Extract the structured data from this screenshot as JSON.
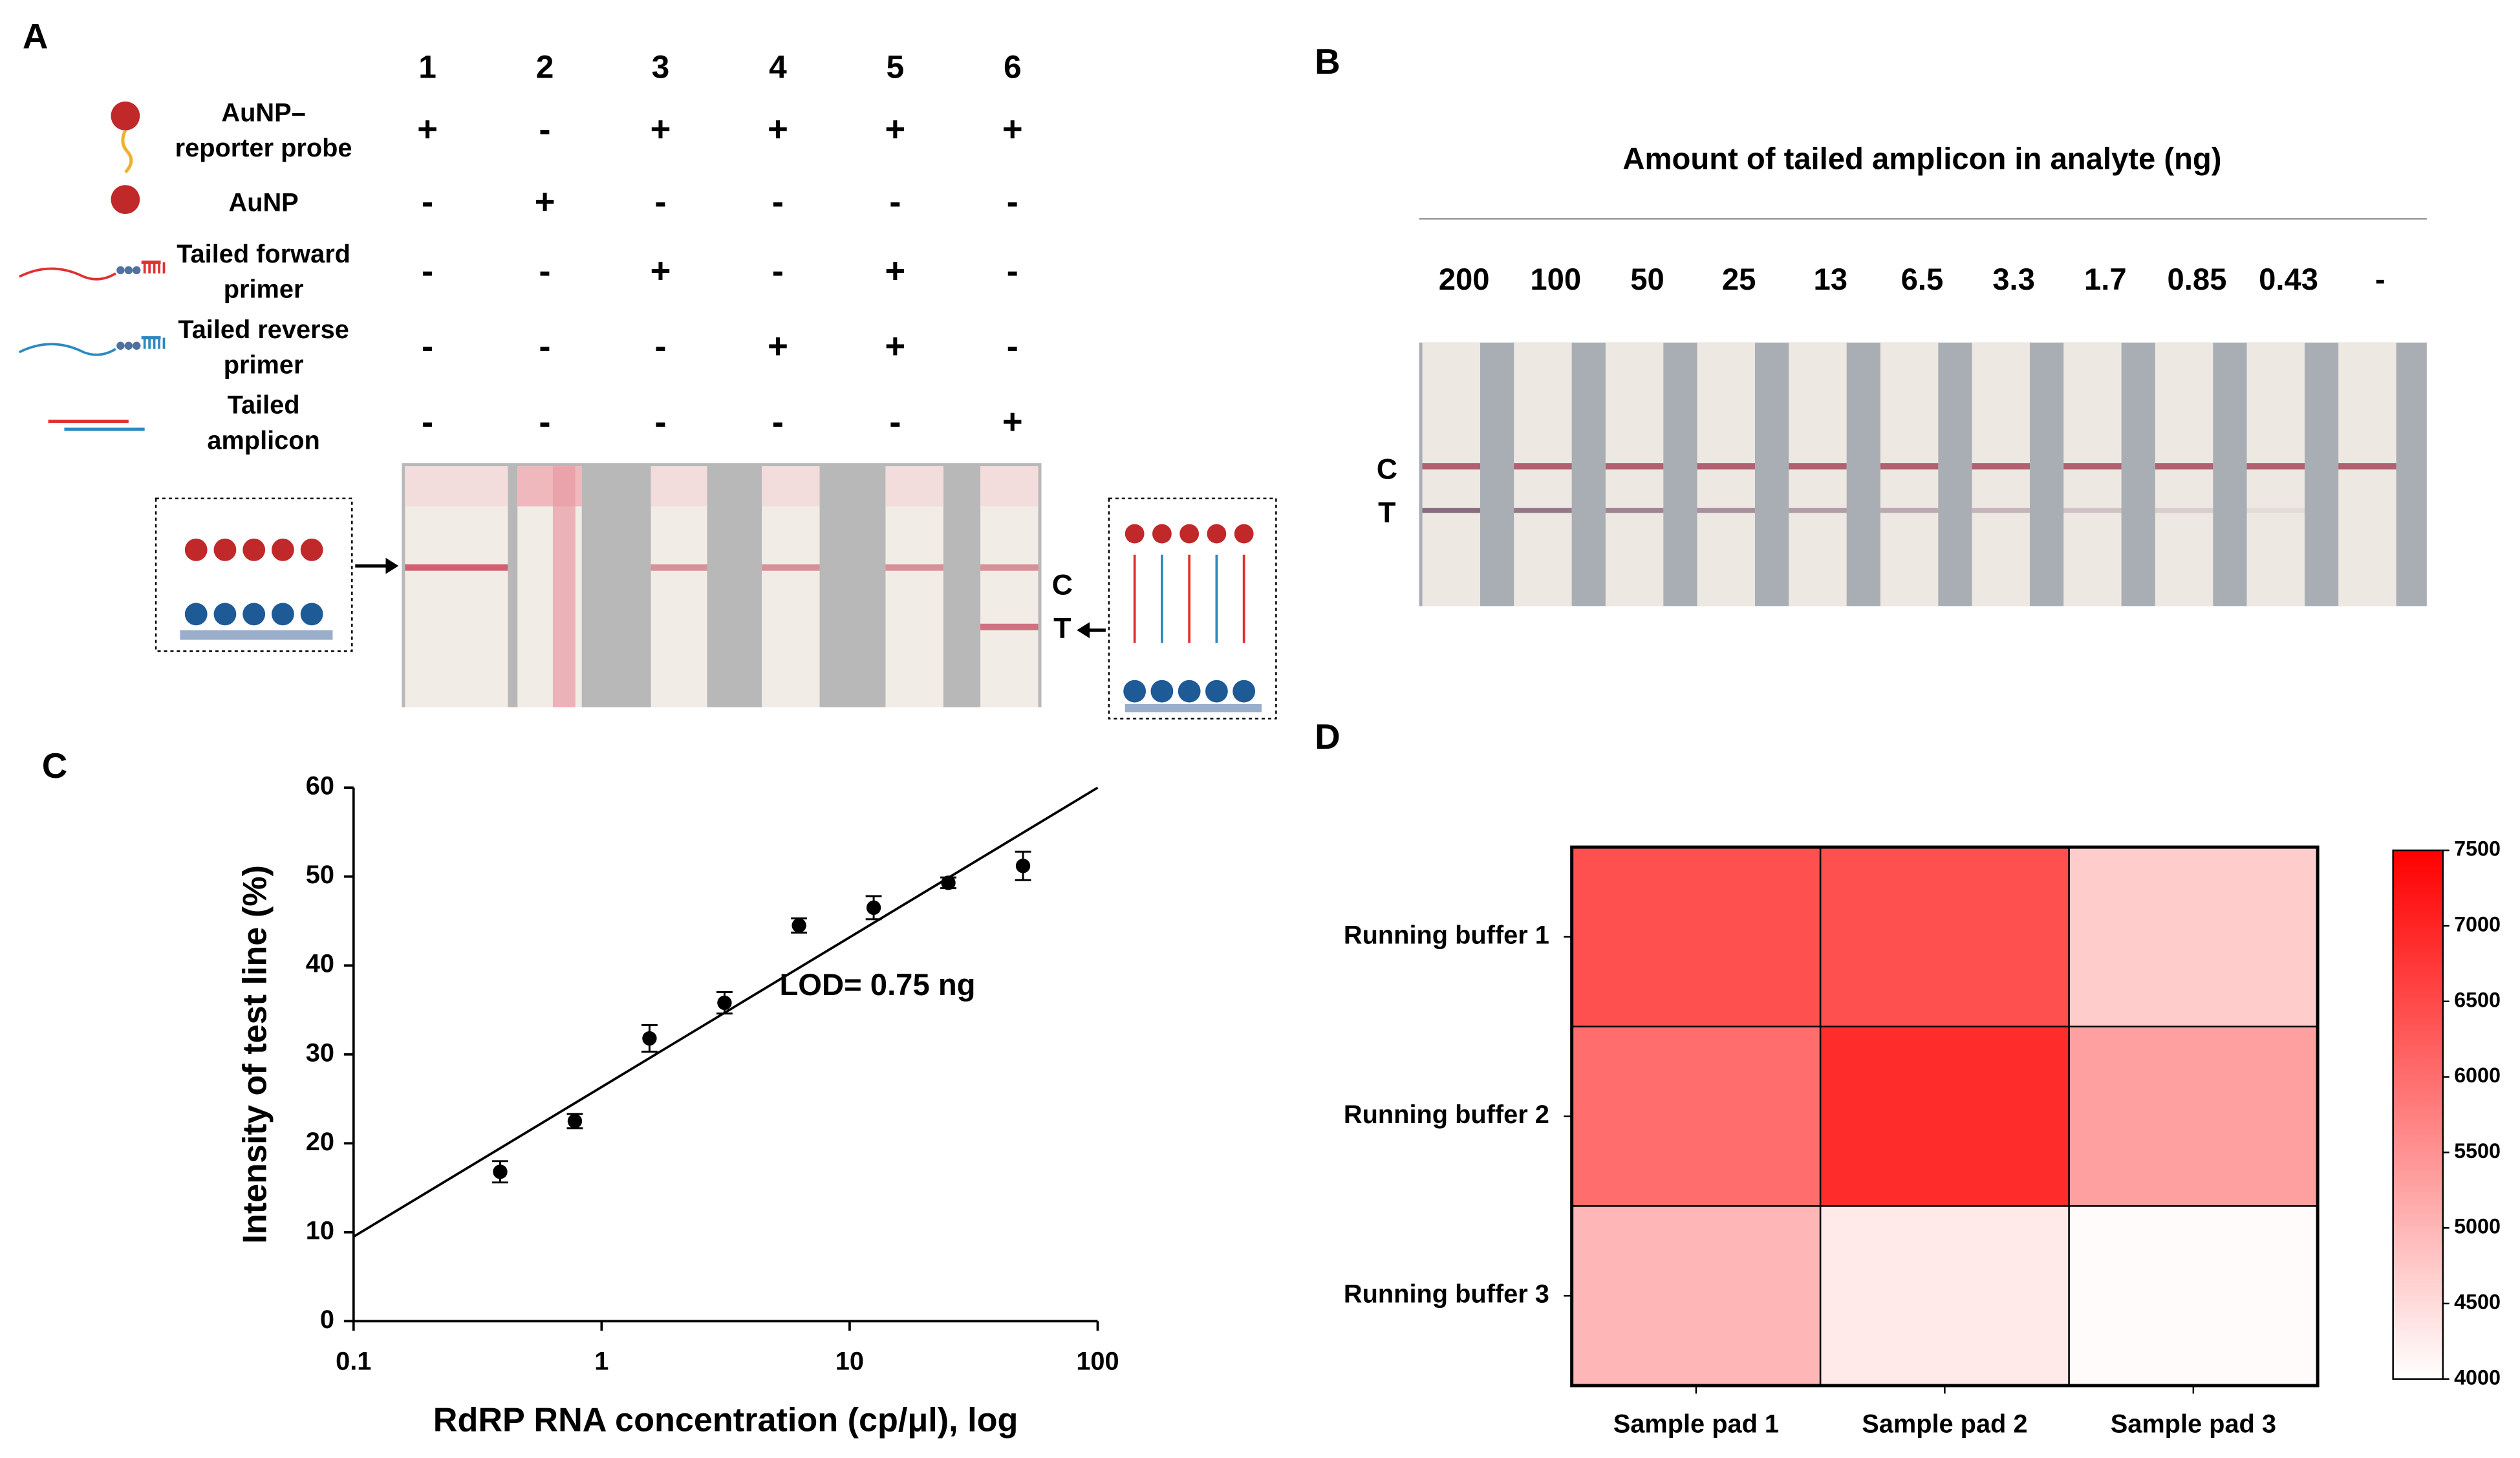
{
  "panel_a": {
    "label": "A",
    "lanes": [
      "1",
      "2",
      "3",
      "4",
      "5",
      "6"
    ],
    "rows": [
      {
        "label_lines": [
          "AuNP–",
          "reporter probe"
        ],
        "signs": [
          "+",
          "-",
          "+",
          "+",
          "+",
          "+"
        ]
      },
      {
        "label_lines": [
          "AuNP"
        ],
        "signs": [
          "-",
          "+",
          "-",
          "-",
          "-",
          "-"
        ]
      },
      {
        "label_lines": [
          "Tailed forward",
          "primer"
        ],
        "signs": [
          "-",
          "-",
          "+",
          "-",
          "+",
          "-"
        ]
      },
      {
        "label_lines": [
          "Tailed reverse",
          "primer"
        ],
        "signs": [
          "-",
          "-",
          "-",
          "+",
          "+",
          "-"
        ]
      },
      {
        "label_lines": [
          "Tailed",
          "amplicon"
        ],
        "signs": [
          "-",
          "-",
          "-",
          "-",
          "-",
          "+"
        ]
      }
    ],
    "strip_labels": [
      "C",
      "T"
    ]
  },
  "panel_b": {
    "label": "B",
    "title": "Amount of tailed amplicon in analyte (ng)",
    "lanes": [
      "200",
      "100",
      "50",
      "25",
      "13",
      "6.5",
      "3.3",
      "1.7",
      "0.85",
      "0.43",
      "-"
    ],
    "strip_labels": [
      "C",
      "T"
    ]
  },
  "chart_data": [
    {
      "type": "scatter",
      "panel_label": "C",
      "xlabel": "RdRP RNA concentration (cp/μl), log",
      "ylabel": "Intensity of test line (%)",
      "annotation": "LOD= 0.75 ng",
      "xscale": "log",
      "xlim": [
        0.1,
        100
      ],
      "xticks": [
        0.1,
        1,
        10,
        100
      ],
      "ylim": [
        0,
        60
      ],
      "yticks": [
        0,
        10,
        20,
        30,
        40,
        50,
        60
      ],
      "color": "#000000",
      "x": [
        0.39,
        0.78,
        1.56,
        3.13,
        6.25,
        12.5,
        25,
        50
      ],
      "values": [
        16.8,
        22.5,
        31.8,
        35.8,
        44.5,
        46.5,
        49.3,
        51.2
      ],
      "errors": [
        1.2,
        0.8,
        1.5,
        1.2,
        0.8,
        1.3,
        0.6,
        1.6
      ],
      "fit": {
        "x": [
          0.1,
          100
        ],
        "values": [
          9.5,
          60
        ]
      }
    },
    {
      "type": "heatmap",
      "panel_label": "D",
      "rows": [
        "Running buffer 1",
        "Running buffer 2",
        "Running buffer 3"
      ],
      "columns": [
        "Sample pad 1",
        "Sample pad 2",
        "Sample pad 3"
      ],
      "values": [
        [
          6400,
          6400,
          4700
        ],
        [
          6000,
          6900,
          5300
        ],
        [
          5000,
          4300,
          4050
        ]
      ],
      "zlim": [
        4000,
        7500
      ],
      "zticks": [
        4000,
        4500,
        5000,
        5500,
        6000,
        6500,
        7000,
        7500
      ],
      "colorscale": [
        "#ffffff",
        "#ff0000"
      ]
    }
  ]
}
